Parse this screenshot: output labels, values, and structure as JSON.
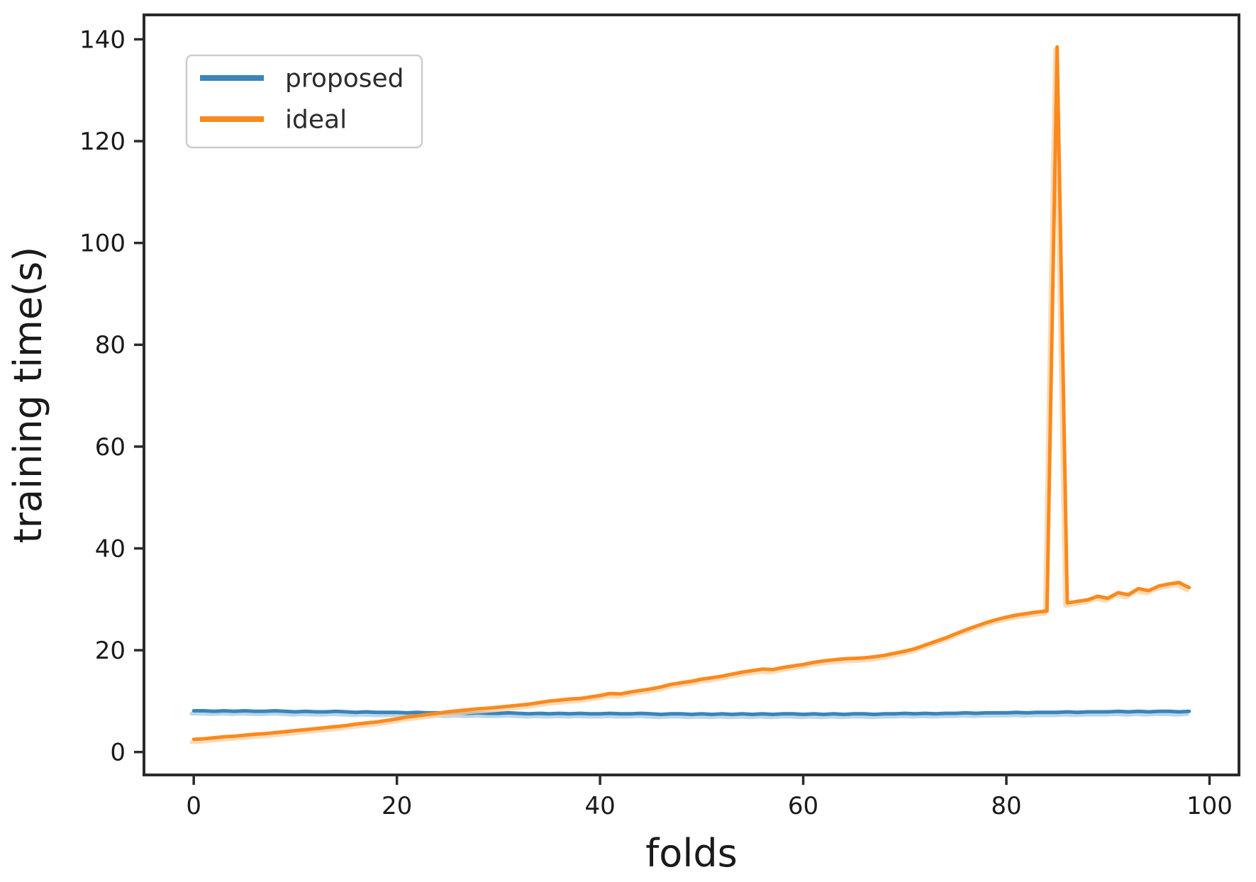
{
  "chart_data": {
    "type": "line",
    "title": "",
    "xlabel": "folds",
    "ylabel": "training time(s)",
    "x_ticks": [
      0,
      20,
      40,
      60,
      80,
      100
    ],
    "y_ticks": [
      0,
      20,
      40,
      60,
      80,
      100,
      120,
      140
    ],
    "xlim": [
      -4.9,
      102.9
    ],
    "ylim": [
      -4.5,
      144.8
    ],
    "grid": false,
    "legend_position": "upper left",
    "x": [
      0,
      1,
      2,
      3,
      4,
      5,
      6,
      7,
      8,
      9,
      10,
      11,
      12,
      13,
      14,
      15,
      16,
      17,
      18,
      19,
      20,
      21,
      22,
      23,
      24,
      25,
      26,
      27,
      28,
      29,
      30,
      31,
      32,
      33,
      34,
      35,
      36,
      37,
      38,
      39,
      40,
      41,
      42,
      43,
      44,
      45,
      46,
      47,
      48,
      49,
      50,
      51,
      52,
      53,
      54,
      55,
      56,
      57,
      58,
      59,
      60,
      61,
      62,
      63,
      64,
      65,
      66,
      67,
      68,
      69,
      70,
      71,
      72,
      73,
      74,
      75,
      76,
      77,
      78,
      79,
      80,
      81,
      82,
      83,
      84,
      85,
      86,
      87,
      88,
      89,
      90,
      91,
      92,
      93,
      94,
      95,
      96,
      97,
      98
    ],
    "series": [
      {
        "name": "proposed",
        "color": "#3a84ba",
        "halo_color": "#a6c9e2",
        "values": [
          8.1,
          8.1,
          8.0,
          8.1,
          8.0,
          8.1,
          8.0,
          8.0,
          8.1,
          8.0,
          7.9,
          8.0,
          7.9,
          7.9,
          8.0,
          7.9,
          7.8,
          7.9,
          7.8,
          7.8,
          7.8,
          7.7,
          7.8,
          7.7,
          7.7,
          7.6,
          7.7,
          7.6,
          7.7,
          7.6,
          7.6,
          7.7,
          7.6,
          7.5,
          7.6,
          7.5,
          7.6,
          7.5,
          7.6,
          7.5,
          7.5,
          7.6,
          7.5,
          7.5,
          7.6,
          7.5,
          7.4,
          7.5,
          7.5,
          7.4,
          7.5,
          7.4,
          7.5,
          7.4,
          7.5,
          7.4,
          7.5,
          7.4,
          7.5,
          7.5,
          7.4,
          7.5,
          7.4,
          7.5,
          7.4,
          7.5,
          7.5,
          7.4,
          7.5,
          7.5,
          7.6,
          7.5,
          7.6,
          7.5,
          7.6,
          7.6,
          7.7,
          7.6,
          7.7,
          7.7,
          7.7,
          7.8,
          7.7,
          7.8,
          7.8,
          7.8,
          7.9,
          7.8,
          7.9,
          7.9,
          7.9,
          8.0,
          7.9,
          8.0,
          7.9,
          8.0,
          8.0,
          7.9,
          8.0
        ]
      },
      {
        "name": "ideal",
        "color": "#fa8a1e",
        "halo_color": "#fdcfa0",
        "values": [
          2.5,
          2.6,
          2.8,
          3.0,
          3.1,
          3.3,
          3.5,
          3.6,
          3.8,
          4.0,
          4.2,
          4.4,
          4.6,
          4.8,
          5.0,
          5.2,
          5.5,
          5.7,
          5.9,
          6.2,
          6.5,
          6.9,
          7.1,
          7.4,
          7.6,
          7.9,
          8.1,
          8.3,
          8.5,
          8.6,
          8.8,
          9.0,
          9.2,
          9.4,
          9.7,
          10.0,
          10.2,
          10.4,
          10.5,
          10.8,
          11.1,
          11.5,
          11.4,
          11.8,
          12.1,
          12.4,
          12.8,
          13.3,
          13.6,
          13.9,
          14.3,
          14.6,
          14.9,
          15.3,
          15.7,
          16.0,
          16.3,
          16.2,
          16.6,
          16.9,
          17.2,
          17.6,
          17.9,
          18.1,
          18.3,
          18.4,
          18.5,
          18.7,
          19.0,
          19.4,
          19.8,
          20.3,
          21.0,
          21.7,
          22.4,
          23.2,
          24.0,
          24.7,
          25.4,
          26.0,
          26.5,
          26.9,
          27.2,
          27.5,
          27.7,
          138.5,
          29.3,
          29.6,
          29.9,
          30.6,
          30.2,
          31.3,
          30.9,
          32.1,
          31.7,
          32.6,
          33.0,
          33.3,
          32.3
        ]
      }
    ]
  }
}
